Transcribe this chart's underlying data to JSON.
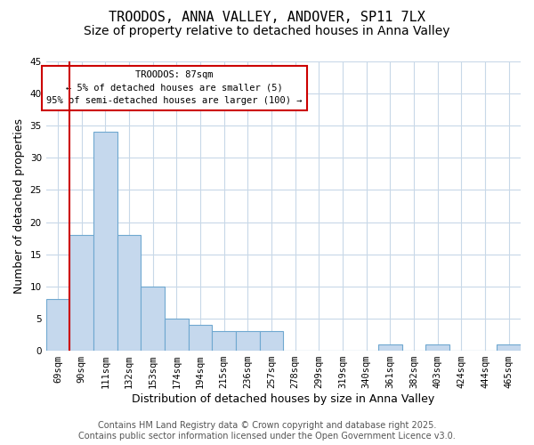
{
  "title": "TROODOS, ANNA VALLEY, ANDOVER, SP11 7LX",
  "subtitle": "Size of property relative to detached houses in Anna Valley",
  "xlabel": "Distribution of detached houses by size in Anna Valley",
  "ylabel": "Number of detached properties",
  "bar_values": [
    8,
    18,
    34,
    18,
    10,
    5,
    4,
    3,
    3,
    3,
    0,
    0,
    0,
    0,
    1,
    0,
    1,
    0,
    0,
    1
  ],
  "bar_labels": [
    "69sqm",
    "90sqm",
    "111sqm",
    "132sqm",
    "153sqm",
    "174sqm",
    "194sqm",
    "215sqm",
    "236sqm",
    "257sqm",
    "278sqm",
    "299sqm",
    "319sqm",
    "340sqm",
    "361sqm",
    "382sqm",
    "403sqm",
    "424sqm",
    "444sqm",
    "465sqm"
  ],
  "bar_color": "#c5d8ed",
  "bar_edge_color": "#6fa8d0",
  "vline_color": "#cc0000",
  "ylim": [
    0,
    45
  ],
  "yticks": [
    0,
    5,
    10,
    15,
    20,
    25,
    30,
    35,
    40,
    45
  ],
  "annotation_title": "TROODOS: 87sqm",
  "annotation_line1": "← 5% of detached houses are smaller (5)",
  "annotation_line2": "95% of semi-detached houses are larger (100) →",
  "annotation_box_color": "#ffffff",
  "annotation_box_edge": "#cc0000",
  "footer_line1": "Contains HM Land Registry data © Crown copyright and database right 2025.",
  "footer_line2": "Contains public sector information licensed under the Open Government Licence v3.0.",
  "bg_color": "#ffffff",
  "grid_color": "#c8d8e8",
  "title_fontsize": 11,
  "subtitle_fontsize": 10,
  "tick_fontsize": 7.5,
  "xlabel_fontsize": 9,
  "ylabel_fontsize": 9,
  "footer_fontsize": 7
}
